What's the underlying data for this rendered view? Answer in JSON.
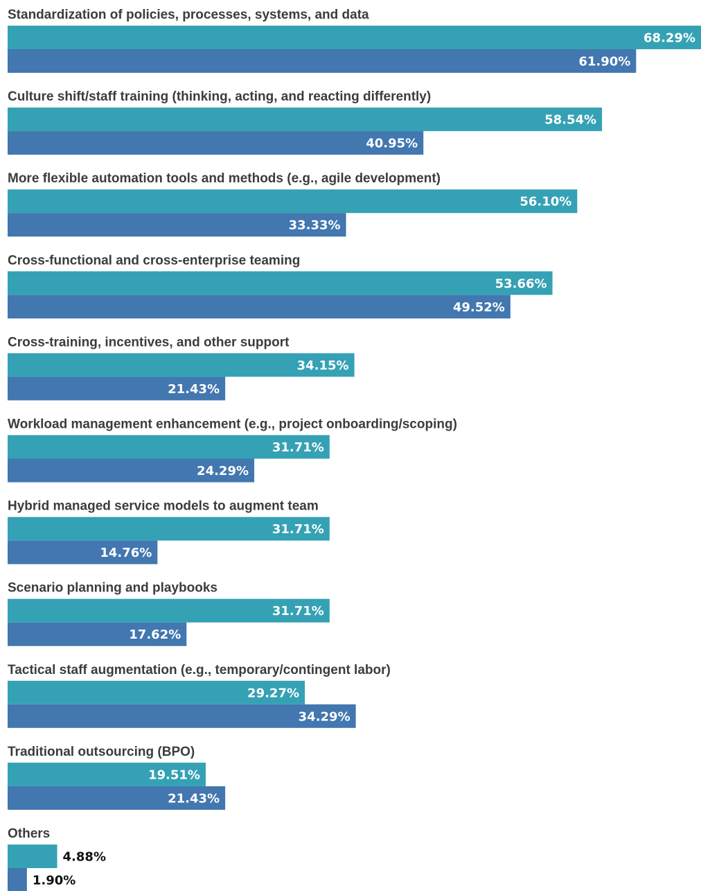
{
  "chart_data": {
    "type": "bar",
    "orientation": "horizontal",
    "value_format": "percent_2dp",
    "categories": [
      "Standardization of policies, processes, systems, and data",
      "Culture shift/staff training (thinking, acting, and reacting differently)",
      "More flexible automation tools and methods (e.g., agile development)",
      "Cross-functional and cross-enterprise teaming",
      "Cross-training, incentives, and other support",
      "Workload management enhancement (e.g., project onboarding/scoping)",
      "Hybrid managed service models to augment team",
      "Scenario planning and playbooks",
      "Tactical staff augmentation (e.g., temporary/contingent labor)",
      "Traditional outsourcing (BPO)",
      "Others"
    ],
    "series": [
      {
        "color": "#35a1b5",
        "values": [
          68.29,
          58.54,
          56.1,
          53.66,
          34.15,
          31.71,
          31.71,
          31.71,
          29.27,
          19.51,
          4.88
        ],
        "labels": [
          "68.29%",
          "58.54%",
          "56.10%",
          "53.66%",
          "34.15%",
          "31.71%",
          "31.71%",
          "31.71%",
          "29.27%",
          "19.51%",
          "4.88%"
        ]
      },
      {
        "color": "#4277b0",
        "values": [
          61.9,
          40.95,
          33.33,
          49.52,
          21.43,
          24.29,
          14.76,
          17.62,
          34.29,
          21.43,
          1.9
        ],
        "labels": [
          "61.90%",
          "40.95%",
          "33.33%",
          "49.52%",
          "21.43%",
          "24.29%",
          "14.76%",
          "17.62%",
          "34.29%",
          "21.43%",
          "1.90%"
        ]
      }
    ],
    "xlim": [
      0,
      68.29
    ],
    "grid": false,
    "legend": "none",
    "title": "",
    "xlabel": "",
    "ylabel": ""
  }
}
